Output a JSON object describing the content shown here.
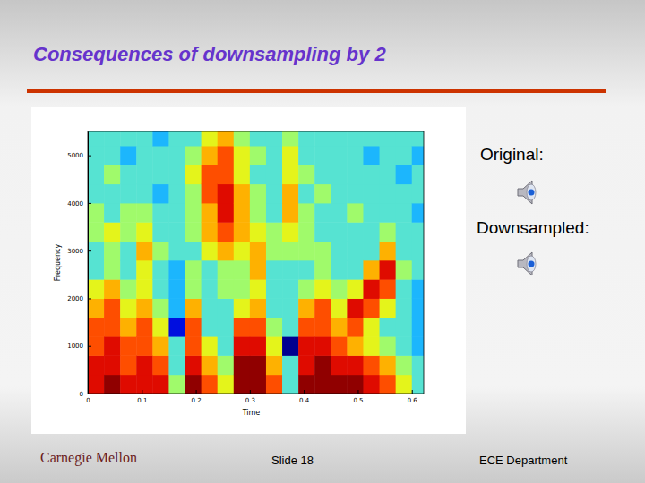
{
  "slide": {
    "title": "Consequences of downsampling by 2",
    "audio": [
      {
        "label": "Original:"
      },
      {
        "label": "Downsampled:"
      }
    ],
    "footer": {
      "logo": "Carnegie Mellon",
      "slide": "Slide 18",
      "department": "ECE Department"
    }
  },
  "chart_data": {
    "type": "heatmap",
    "x_label": "Time",
    "y_label": "Frequency",
    "xlim": [
      0,
      0.622
    ],
    "ylim": [
      0,
      5500
    ],
    "xticks": [
      0,
      0.1,
      0.2,
      0.3,
      0.4,
      0.5,
      0.6
    ],
    "yticks": [
      0,
      1000,
      2000,
      3000,
      4000,
      5000
    ],
    "x_edges": [
      0,
      0.03,
      0.06,
      0.09,
      0.12,
      0.15,
      0.18,
      0.21,
      0.24,
      0.27,
      0.3,
      0.33,
      0.36,
      0.39,
      0.42,
      0.45,
      0.48,
      0.51,
      0.54,
      0.57,
      0.6,
      0.63
    ],
    "y_edges": [
      0,
      400,
      800,
      1200,
      1600,
      2000,
      2400,
      2800,
      3200,
      3600,
      4000,
      4400,
      4800,
      5200,
      5600
    ],
    "values": [
      [
        9,
        9,
        8,
        8,
        7,
        6,
        4,
        4,
        5,
        5,
        4,
        4,
        4,
        4
      ],
      [
        10,
        9,
        9,
        8,
        8,
        7,
        5,
        5,
        6,
        4,
        4,
        5,
        4,
        4
      ],
      [
        9,
        8,
        8,
        7,
        6,
        5,
        4,
        4,
        5,
        5,
        4,
        4,
        3,
        4
      ],
      [
        9,
        9,
        8,
        8,
        7,
        6,
        6,
        7,
        6,
        5,
        4,
        4,
        4,
        4
      ],
      [
        9,
        8,
        7,
        6,
        5,
        4,
        4,
        5,
        4,
        4,
        3,
        4,
        4,
        3
      ],
      [
        5,
        4,
        4,
        1,
        3,
        3,
        3,
        4,
        4,
        4,
        4,
        4,
        4,
        4
      ],
      [
        10,
        9,
        8,
        8,
        7,
        5,
        5,
        4,
        5,
        5,
        5,
        6,
        5,
        4
      ],
      [
        8,
        7,
        6,
        4,
        4,
        4,
        4,
        6,
        7,
        7,
        8,
        8,
        7,
        6
      ],
      [
        6,
        5,
        4,
        4,
        4,
        5,
        5,
        7,
        8,
        9,
        9,
        8,
        8,
        7
      ],
      [
        10,
        10,
        9,
        8,
        6,
        5,
        5,
        6,
        7,
        7,
        7,
        6,
        6,
        5
      ],
      [
        10,
        10,
        9,
        8,
        7,
        6,
        7,
        7,
        6,
        5,
        5,
        4,
        5,
        4
      ],
      [
        8,
        7,
        6,
        5,
        4,
        4,
        4,
        5,
        5,
        4,
        4,
        4,
        4,
        4
      ],
      [
        4,
        4,
        0,
        4,
        4,
        4,
        4,
        5,
        6,
        7,
        7,
        6,
        6,
        5
      ],
      [
        10,
        9,
        9,
        8,
        7,
        5,
        4,
        5,
        5,
        5,
        4,
        5,
        4,
        4
      ],
      [
        10,
        10,
        9,
        8,
        8,
        6,
        5,
        5,
        4,
        4,
        5,
        4,
        4,
        4
      ],
      [
        10,
        9,
        8,
        7,
        6,
        5,
        4,
        4,
        4,
        4,
        4,
        4,
        4,
        4
      ],
      [
        10,
        9,
        7,
        8,
        9,
        6,
        4,
        4,
        4,
        5,
        4,
        4,
        4,
        4
      ],
      [
        9,
        8,
        6,
        6,
        8,
        9,
        7,
        4,
        4,
        4,
        4,
        4,
        3,
        4
      ],
      [
        8,
        7,
        5,
        4,
        6,
        8,
        9,
        7,
        5,
        4,
        4,
        4,
        4,
        4
      ],
      [
        6,
        5,
        4,
        4,
        4,
        4,
        5,
        4,
        4,
        4,
        4,
        3,
        4,
        4
      ],
      [
        4,
        4,
        3,
        3,
        3,
        3,
        4,
        4,
        4,
        3,
        4,
        4,
        3,
        4
      ]
    ]
  }
}
